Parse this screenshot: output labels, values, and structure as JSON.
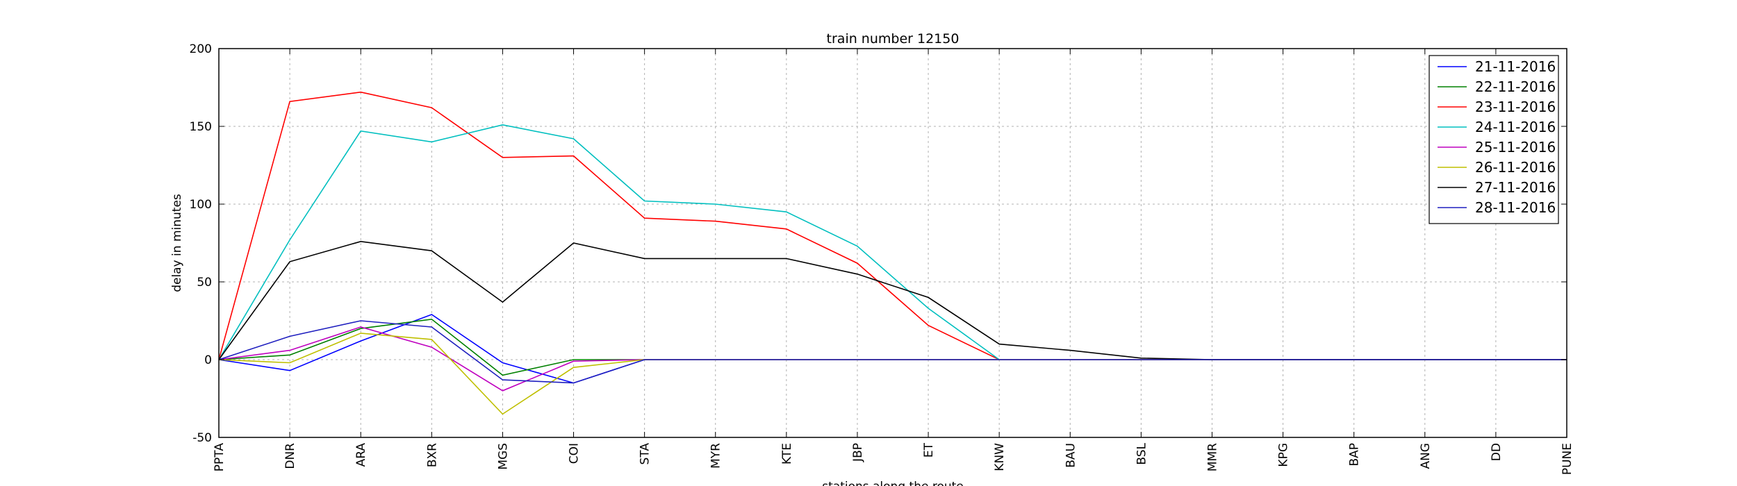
{
  "chart_data": {
    "type": "line",
    "title": "train number 12150",
    "xlabel": "stations along the route",
    "ylabel": "delay in minutes",
    "ylim": [
      -50,
      200
    ],
    "yticks": [
      -50,
      0,
      50,
      100,
      150,
      200
    ],
    "grid": true,
    "legend_position": "top-right",
    "categories": [
      "PPTA",
      "DNR",
      "ARA",
      "BXR",
      "MGS",
      "COI",
      "STA",
      "MYR",
      "KTE",
      "JBP",
      "ET",
      "KNW",
      "BAU",
      "BSL",
      "MMR",
      "KPG",
      "BAP",
      "ANG",
      "DD",
      "PUNE"
    ],
    "series": [
      {
        "name": "21-11-2016",
        "color": "#0000ff",
        "values": [
          0,
          -7,
          12,
          29,
          -2,
          -15,
          0,
          0,
          0,
          0,
          0,
          0,
          0,
          0,
          0,
          0,
          0,
          0,
          0,
          0
        ]
      },
      {
        "name": "22-11-2016",
        "color": "#008000",
        "values": [
          0,
          3,
          20,
          26,
          -10,
          0,
          0,
          0,
          0,
          0,
          0,
          0,
          0,
          0,
          0,
          0,
          0,
          0,
          0,
          0
        ]
      },
      {
        "name": "23-11-2016",
        "color": "#ff0000",
        "values": [
          0,
          166,
          172,
          162,
          130,
          131,
          91,
          89,
          84,
          62,
          22,
          0,
          0,
          0,
          0,
          0,
          0,
          0,
          0,
          0
        ]
      },
      {
        "name": "24-11-2016",
        "color": "#00bfbf",
        "values": [
          0,
          77,
          147,
          140,
          151,
          142,
          102,
          100,
          95,
          73,
          33,
          0,
          0,
          0,
          0,
          0,
          0,
          0,
          0,
          0
        ]
      },
      {
        "name": "25-11-2016",
        "color": "#bf00bf",
        "values": [
          0,
          6,
          21,
          8,
          -20,
          -1,
          0,
          0,
          0,
          0,
          0,
          0,
          0,
          0,
          0,
          0,
          0,
          0,
          0,
          0
        ]
      },
      {
        "name": "26-11-2016",
        "color": "#bfbf00",
        "values": [
          0,
          -2,
          17,
          13,
          -35,
          -5,
          0,
          0,
          0,
          0,
          0,
          0,
          0,
          0,
          0,
          0,
          0,
          0,
          0,
          0
        ]
      },
      {
        "name": "27-11-2016",
        "color": "#000000",
        "values": [
          0,
          63,
          76,
          70,
          37,
          75,
          65,
          65,
          65,
          55,
          40,
          10,
          6,
          1,
          0,
          0,
          0,
          0,
          0,
          0
        ]
      },
      {
        "name": "28-11-2016",
        "color": "#1f1fbf",
        "values": [
          0,
          15,
          25,
          21,
          -13,
          -15,
          0,
          0,
          0,
          0,
          0,
          0,
          0,
          0,
          0,
          0,
          0,
          0,
          0,
          0
        ]
      }
    ]
  }
}
